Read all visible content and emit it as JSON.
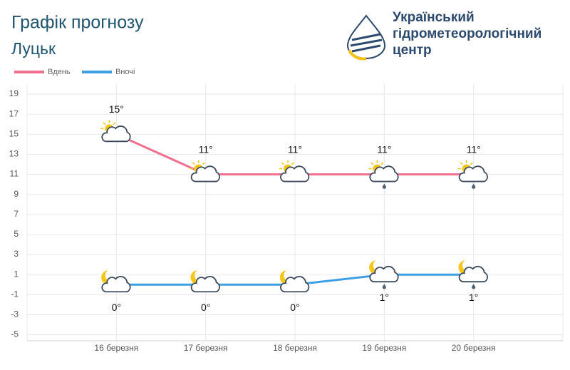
{
  "header": {
    "organization": [
      "Український",
      "гідрометеорологічний",
      "центр"
    ]
  },
  "chart_data": {
    "type": "line",
    "title": "Графік прогнозу",
    "subtitle": "Луцьк",
    "categories": [
      "16 березня",
      "17 березня",
      "18 березня",
      "19 березня",
      "20 березня"
    ],
    "series": [
      {
        "name": "Вдень",
        "color": "#f2708f",
        "values": [
          15,
          11,
          11,
          11,
          11
        ],
        "value_labels": [
          "15°",
          "11°",
          "11°",
          "11°",
          "11°"
        ]
      },
      {
        "name": "Вночі",
        "color": "#3ea0e4",
        "values": [
          0,
          0,
          0,
          1,
          1
        ],
        "value_labels": [
          "0°",
          "0°",
          "0°",
          "1°",
          "1°"
        ]
      }
    ],
    "ylim": [
      -5.6,
      20
    ],
    "yticks": [
      -5,
      -3,
      -1,
      1,
      3,
      5,
      7,
      9,
      11,
      13,
      15,
      17,
      19
    ],
    "grid": true,
    "legend": "top-left"
  }
}
